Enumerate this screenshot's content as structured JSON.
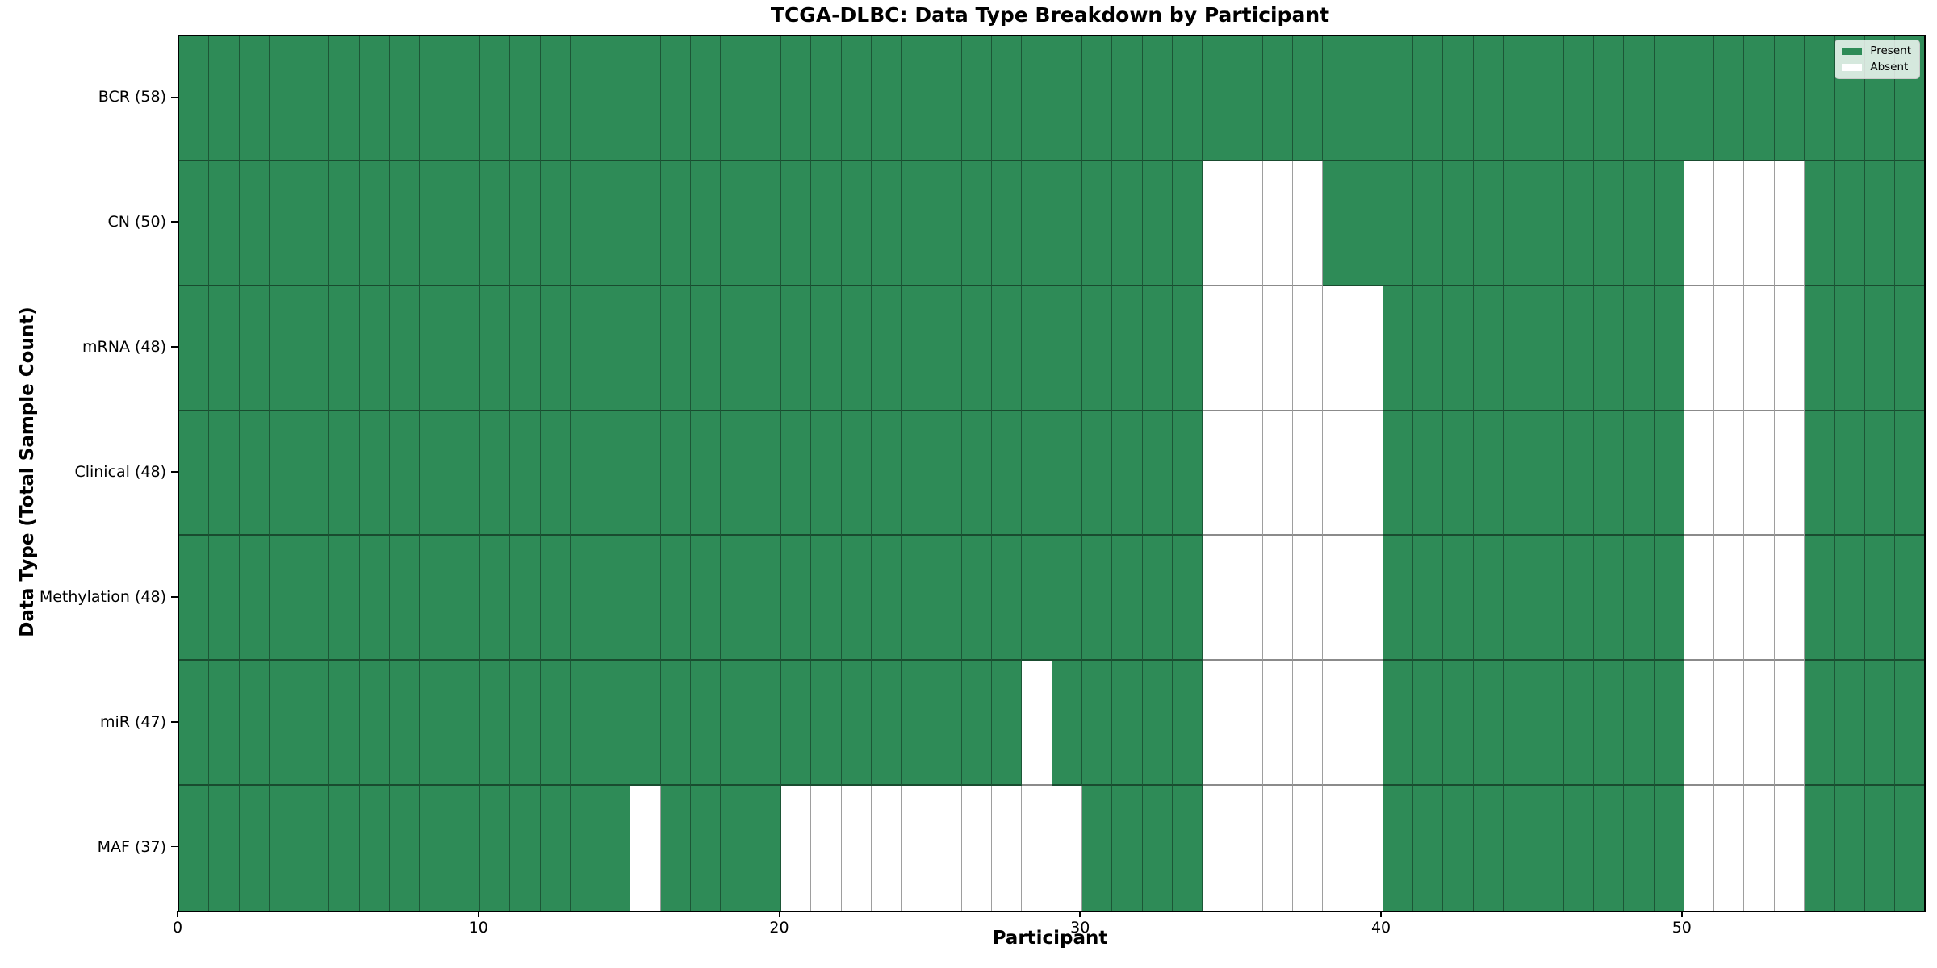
{
  "chart_data": {
    "type": "heatmap",
    "title": "TCGA-DLBC: Data Type Breakdown by Participant",
    "xlabel": "Participant",
    "ylabel": "Data Type (Total Sample Count)",
    "x_ticks": [
      0,
      10,
      20,
      30,
      40,
      50
    ],
    "x_range": [
      0,
      58
    ],
    "n_participants": 58,
    "legend": {
      "position": "upper-right",
      "entries": [
        {
          "label": "Present",
          "value": "present",
          "color": "#2e8b57"
        },
        {
          "label": "Absent",
          "value": "absent",
          "color": "#ffffff"
        }
      ]
    },
    "colors": {
      "present": "#2e8b57",
      "absent": "#ffffff",
      "cell_edge_vertical": "rgba(0,0,0,0.38)",
      "cell_edge_horizontal": "rgba(0,0,0,0.45)"
    },
    "rows": [
      {
        "label": "BCR (58)",
        "name": "BCR",
        "present_count": 58,
        "absent_participants": []
      },
      {
        "label": "CN (50)",
        "name": "CN",
        "present_count": 50,
        "absent_participants": [
          34,
          35,
          36,
          37,
          50,
          51,
          52,
          53
        ]
      },
      {
        "label": "mRNA (48)",
        "name": "mRNA",
        "present_count": 48,
        "absent_participants": [
          34,
          35,
          36,
          37,
          38,
          39,
          50,
          51,
          52,
          53
        ]
      },
      {
        "label": "Clinical (48)",
        "name": "Clinical",
        "present_count": 48,
        "absent_participants": [
          34,
          35,
          36,
          37,
          38,
          39,
          50,
          51,
          52,
          53
        ]
      },
      {
        "label": "Methylation (48)",
        "name": "Methylation",
        "present_count": 48,
        "absent_participants": [
          34,
          35,
          36,
          37,
          38,
          39,
          50,
          51,
          52,
          53
        ]
      },
      {
        "label": "miR (47)",
        "name": "miR",
        "present_count": 47,
        "absent_participants": [
          28,
          34,
          35,
          36,
          37,
          38,
          39,
          50,
          51,
          52,
          53
        ]
      },
      {
        "label": "MAF (37)",
        "name": "MAF",
        "present_count": 37,
        "absent_participants": [
          15,
          20,
          21,
          22,
          23,
          24,
          25,
          26,
          27,
          28,
          29,
          34,
          35,
          36,
          37,
          38,
          39,
          50,
          51,
          52,
          53
        ]
      }
    ]
  }
}
